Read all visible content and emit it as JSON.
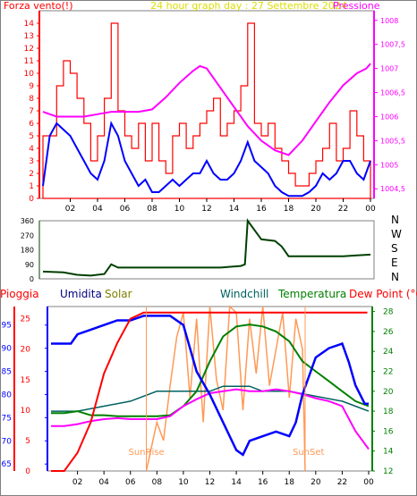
{
  "title": "24 hour graph day : 27 Settembre 2024",
  "x_ticks": [
    "02",
    "04",
    "06",
    "08",
    "10",
    "12",
    "14",
    "16",
    "18",
    "20",
    "22",
    "00"
  ],
  "colors": {
    "wind": "#ff0000",
    "gust_fill": "#ff0000",
    "pressure": "#ff00ff",
    "wind_speed": "#0000ff",
    "direction": "#004000",
    "rain": "#ff0000",
    "humidity": "#0000ff",
    "solar": "#ff9955",
    "windchill": "#006060",
    "temperature": "#008000",
    "dewpoint": "#ff00ff",
    "axis_frame": "#808080"
  },
  "chart_data": [
    {
      "type": "line",
      "left_label": "Forza vento(!)",
      "right_label": "Pressione",
      "left_ticks": [
        "0",
        "1",
        "2",
        "3",
        "4",
        "5",
        "6",
        "7",
        "8",
        "9",
        "10",
        "11",
        "12",
        "13",
        "14"
      ],
      "right_ticks": [
        "1004,5",
        "1005",
        "1005,5",
        "1006",
        "1006,5",
        "1007",
        "1007,5",
        "1008"
      ],
      "ylim_left": [
        0,
        15
      ],
      "ylim_right": [
        1004.3,
        1008.2
      ],
      "series": [
        {
          "key": "gust",
          "x": [
            0,
            1,
            1.5,
            2,
            2.5,
            3,
            3.5,
            4,
            4.5,
            5,
            5.5,
            6,
            6.5,
            7,
            7.5,
            8,
            8.5,
            9,
            9.5,
            10,
            10.5,
            11,
            11.5,
            12,
            12.5,
            13,
            13.5,
            14,
            14.5,
            15,
            15.5,
            16,
            16.5,
            17,
            17.5,
            18,
            18.5,
            19,
            19.5,
            20,
            20.5,
            21,
            21.5,
            22,
            22.5,
            23,
            23.5,
            24
          ],
          "values": [
            5,
            9,
            11,
            10,
            8,
            6,
            3,
            5,
            8,
            14,
            7,
            5,
            4,
            6,
            3,
            6,
            3,
            2,
            5,
            6,
            4,
            5,
            6,
            7,
            8,
            5,
            6,
            7,
            9,
            14,
            6,
            5,
            6,
            4,
            3,
            2,
            1,
            1,
            2,
            3,
            4,
            6,
            3,
            4,
            7,
            5,
            3,
            3
          ]
        },
        {
          "key": "pressure",
          "x": [
            0,
            1,
            2,
            3,
            4,
            5,
            6,
            7,
            8,
            9,
            10,
            11,
            11.5,
            12,
            13,
            14,
            15,
            16,
            17,
            18,
            19,
            20,
            21,
            22,
            23,
            23.7,
            24
          ],
          "values": [
            1006.1,
            1006.0,
            1006.0,
            1006.0,
            1006.05,
            1006.1,
            1006.1,
            1006.1,
            1006.15,
            1006.4,
            1006.7,
            1006.95,
            1007.05,
            1007.0,
            1006.6,
            1006.2,
            1005.8,
            1005.5,
            1005.3,
            1005.2,
            1005.5,
            1005.9,
            1006.3,
            1006.65,
            1006.9,
            1007.0,
            1007.1
          ]
        },
        {
          "key": "wind_speed",
          "x": [
            0,
            0.5,
            1,
            1.5,
            2,
            2.5,
            3,
            3.5,
            4,
            4.5,
            5,
            5.5,
            6,
            6.5,
            7,
            7.5,
            8,
            8.5,
            9,
            9.5,
            10,
            10.5,
            11,
            11.5,
            12,
            12.5,
            13,
            13.5,
            14,
            14.5,
            15,
            15.5,
            16,
            16.5,
            17,
            17.5,
            18,
            18.5,
            19,
            19.5,
            20,
            20.5,
            21,
            21.5,
            22,
            22.5,
            23,
            23.5,
            24
          ],
          "values": [
            1,
            5,
            6,
            5.5,
            5,
            4,
            3,
            2,
            1.5,
            3,
            6,
            5,
            3,
            2,
            1,
            1.5,
            0.5,
            0.5,
            1,
            1.5,
            1,
            1.5,
            2,
            2,
            3,
            2,
            1.5,
            1.5,
            2,
            3,
            4.5,
            3,
            2.5,
            2,
            1,
            0.5,
            0.2,
            0.2,
            0.2,
            0.5,
            1,
            2,
            1.5,
            2,
            3,
            3,
            2,
            1.5,
            3
          ]
        }
      ]
    },
    {
      "type": "line",
      "left_ticks": [
        "0",
        "90",
        "180",
        "270",
        "360"
      ],
      "right_ticks": [
        "N",
        "W",
        "S",
        "E",
        "N"
      ],
      "ylim": [
        0,
        360
      ],
      "series": [
        {
          "key": "direction",
          "x": [
            0,
            1.5,
            2.5,
            3.5,
            4.5,
            5,
            5.5,
            6,
            7,
            9,
            11,
            13,
            14.5,
            14.8,
            15,
            16,
            17,
            17.5,
            18,
            20,
            22,
            23,
            24
          ],
          "values": [
            45,
            40,
            25,
            20,
            30,
            90,
            70,
            70,
            70,
            70,
            70,
            70,
            80,
            90,
            360,
            245,
            235,
            200,
            140,
            140,
            140,
            145,
            150
          ]
        }
      ]
    },
    {
      "type": "line",
      "legend": [
        "Pioggia",
        "Umidita",
        "Solar",
        "Windchill",
        "Temperatura",
        "Dew Point (°C)"
      ],
      "rain_ticks": [
        "0",
        "5",
        "10",
        "15",
        "20",
        "25"
      ],
      "humidity_ticks": [
        "65",
        "70",
        "75",
        "80",
        "85",
        "90",
        "95"
      ],
      "temp_ticks": [
        "12",
        "14",
        "16",
        "18",
        "20",
        "22",
        "24",
        "26",
        "28"
      ],
      "rain_ylim": [
        0,
        27
      ],
      "humidity_ylim": [
        63.5,
        99
      ],
      "temp_ylim": [
        12,
        28.5
      ],
      "sunrise_label": "SunRise",
      "sunset_label": "SunSet",
      "sunrise_x": 7.2,
      "sunset_x": 19.2,
      "series": [
        {
          "key": "rain",
          "x": [
            0,
            1,
            2,
            3,
            4,
            5,
            6,
            7,
            8,
            23.9
          ],
          "values": [
            0,
            0,
            3,
            8,
            16,
            21,
            25,
            26,
            26,
            26
          ]
        },
        {
          "key": "humidity",
          "x": [
            0,
            1.5,
            2,
            3,
            4,
            5,
            6,
            7,
            8,
            9,
            10,
            10.5,
            11,
            12,
            13,
            14,
            14.5,
            15,
            16,
            17,
            18,
            18.5,
            19,
            20,
            21,
            22,
            22.5,
            23,
            23.7,
            24
          ],
          "values": [
            91,
            91,
            93,
            94,
            95,
            96,
            96,
            97,
            97,
            97,
            95,
            90,
            85,
            80,
            74,
            68,
            67,
            70,
            71,
            72,
            71,
            74,
            80,
            88,
            90,
            91,
            87,
            82,
            78,
            78
          ]
        },
        {
          "key": "solar_day",
          "x": [
            7.2,
            8,
            8.5,
            9,
            9.5,
            10,
            10.5,
            11,
            11.5,
            12,
            12.5,
            13,
            13.5,
            14,
            14.5,
            15,
            15.5,
            16,
            16.5,
            17,
            17.5,
            18,
            18.5,
            19,
            19.2
          ],
          "values": [
            0,
            8,
            5,
            14,
            22,
            26,
            12,
            25,
            8,
            27,
            15,
            10,
            27,
            26,
            10,
            25,
            16,
            27,
            14,
            20,
            26,
            12,
            25,
            20,
            0
          ]
        },
        {
          "key": "windchill",
          "x": [
            0,
            2,
            4,
            6,
            8,
            10,
            12,
            13,
            14,
            15,
            16,
            17,
            18,
            20,
            22,
            23,
            24
          ],
          "values": [
            18,
            18,
            18.5,
            19,
            20,
            20,
            20,
            20.5,
            20.5,
            20.5,
            20,
            20,
            20,
            19.5,
            19,
            18.5,
            18
          ]
        },
        {
          "key": "temperature",
          "x": [
            0,
            1,
            2,
            3,
            4,
            5,
            6,
            7,
            8,
            9,
            10,
            11,
            12,
            13,
            14,
            15,
            16,
            17,
            18,
            19,
            20,
            21,
            22,
            23,
            24
          ],
          "values": [
            17.8,
            17.8,
            18,
            17.6,
            17.6,
            17.5,
            17.5,
            17.5,
            17.5,
            17.6,
            18.5,
            20,
            23,
            25.5,
            26.5,
            26.7,
            26.5,
            26,
            25,
            23,
            22,
            21,
            20,
            19,
            18.5
          ]
        },
        {
          "key": "dewpoint",
          "x": [
            0,
            1,
            2,
            3,
            4,
            5,
            6,
            7,
            8,
            9,
            10,
            11,
            12,
            13,
            14,
            15,
            16,
            17,
            18,
            19,
            20,
            21,
            22,
            23,
            24
          ],
          "values": [
            16.5,
            16.5,
            16.7,
            17,
            17.2,
            17.3,
            17.2,
            17.2,
            17.2,
            17.5,
            18.5,
            19.2,
            19.8,
            20,
            20.2,
            20,
            20,
            20.2,
            20,
            19.7,
            19.3,
            19,
            18.5,
            16,
            14.2
          ]
        }
      ]
    }
  ]
}
